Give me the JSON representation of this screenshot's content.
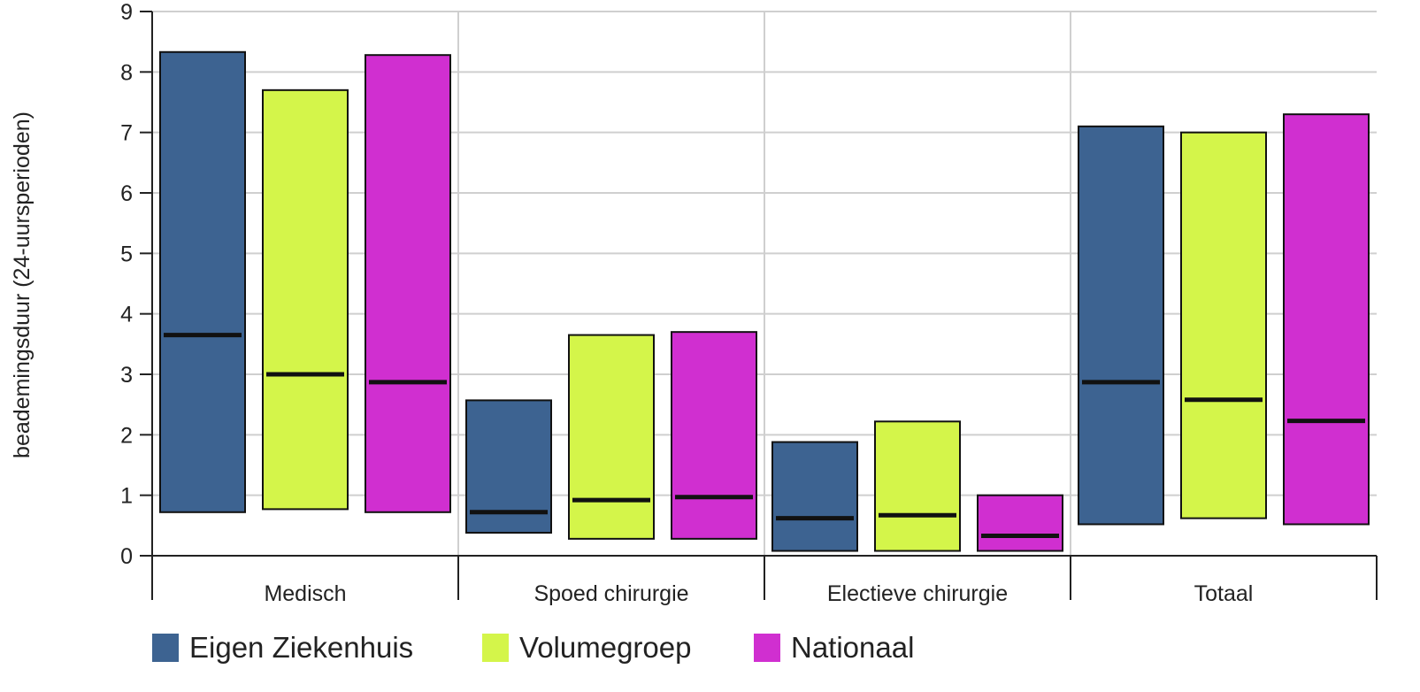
{
  "chart_data": {
    "type": "bar",
    "title": "",
    "xlabel": "",
    "ylabel": "beademingsduur (24-uursperioden)",
    "ylim": [
      0,
      9
    ],
    "yticks": [
      "0",
      "1",
      "2",
      "3",
      "4",
      "5",
      "6",
      "7",
      "8",
      "9"
    ],
    "grid": true,
    "legend_position": "bottom-left",
    "categories": [
      "Medisch",
      "Spoed chirurgie",
      "Electieve chirurgie",
      "Totaal"
    ],
    "series": [
      {
        "name": "Eigen Ziekenhuis",
        "color": "#3d6391",
        "low": [
          0.72,
          0.38,
          0.08,
          0.52
        ],
        "high": [
          8.33,
          2.57,
          1.88,
          7.1
        ],
        "median": [
          3.65,
          0.72,
          0.62,
          2.87
        ]
      },
      {
        "name": "Volumegroep",
        "color": "#d4f54a",
        "low": [
          0.77,
          0.28,
          0.08,
          0.62
        ],
        "high": [
          7.7,
          3.65,
          2.22,
          7.0
        ],
        "median": [
          3.0,
          0.92,
          0.67,
          2.58
        ]
      },
      {
        "name": "Nationaal",
        "color": "#d02fd0",
        "low": [
          0.72,
          0.28,
          0.08,
          0.52
        ],
        "high": [
          8.28,
          3.7,
          1.0,
          7.3
        ],
        "median": [
          2.87,
          0.97,
          0.33,
          2.23
        ]
      }
    ]
  }
}
